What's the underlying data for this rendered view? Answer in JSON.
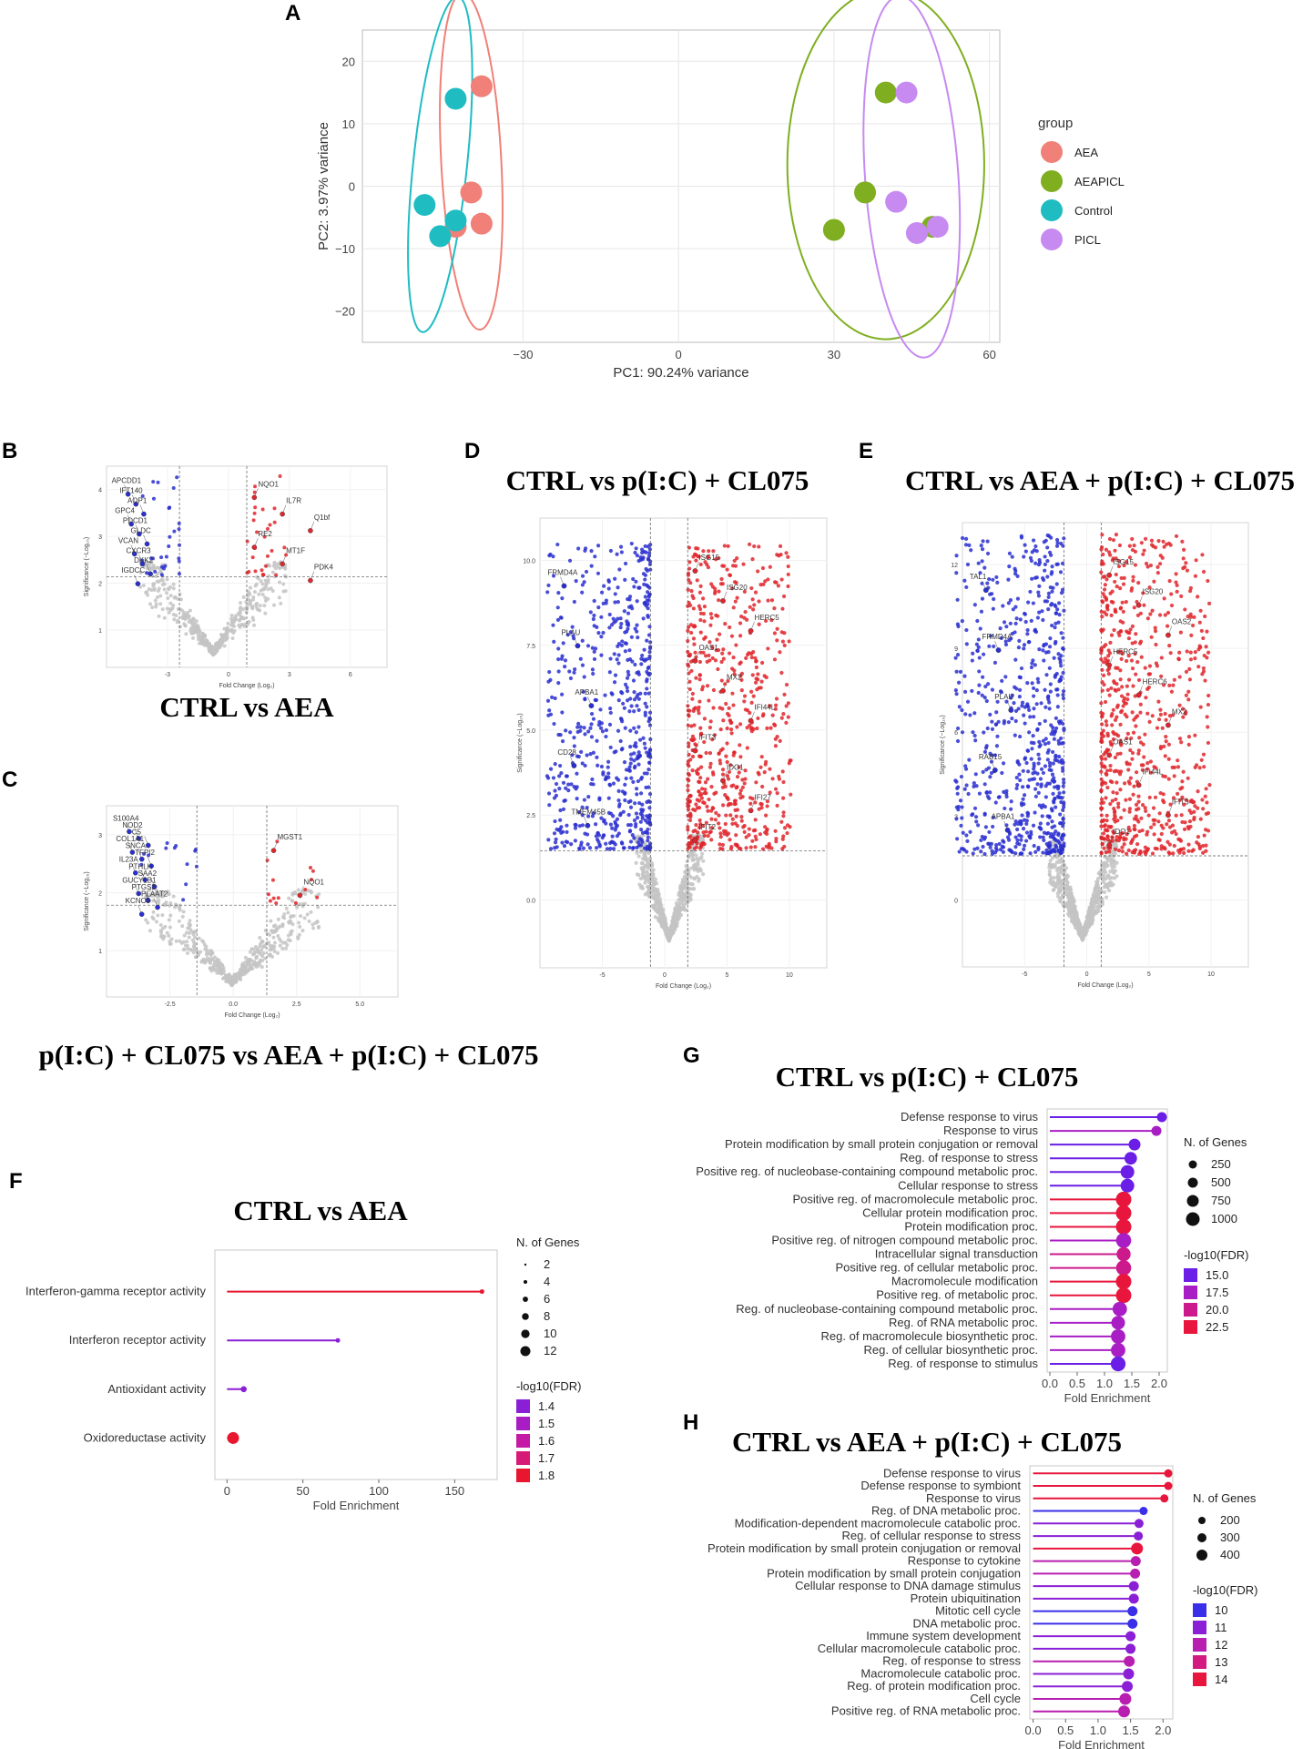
{
  "panel_letters": {
    "a": "A",
    "b": "B",
    "c": "C",
    "d": "D",
    "e": "E",
    "f": "F",
    "g": "G",
    "h": "H"
  },
  "colors": {
    "AEA": "#f08078",
    "AEAPICL": "#7fae20",
    "Control": "#1fbcc2",
    "PICL": "#c68af0",
    "down": "#2a2fd0",
    "up": "#e0262c",
    "ns": "#c4c4c4"
  },
  "chart_data": [
    {
      "id": "A",
      "type": "scatter",
      "xlabel": "PC1: 90.24% variance",
      "ylabel": "PC2: 3.97% variance",
      "xlim": [
        -61,
        62
      ],
      "ylim": [
        -25,
        25
      ],
      "xticks": [
        -30,
        0,
        30,
        60
      ],
      "yticks": [
        20,
        10,
        0,
        -10,
        -20
      ],
      "legend_title": "group",
      "series": [
        {
          "name": "AEA",
          "points": [
            [
              -38,
              16
            ],
            [
              -40,
              -1
            ],
            [
              -43,
              -6.5
            ],
            [
              -38,
              -6
            ]
          ]
        },
        {
          "name": "AEAPICL",
          "points": [
            [
              40,
              15
            ],
            [
              36,
              -1
            ],
            [
              30,
              -7
            ],
            [
              49,
              -6.5
            ]
          ]
        },
        {
          "name": "Control",
          "points": [
            [
              -43,
              14
            ],
            [
              -49,
              -3
            ],
            [
              -43,
              -5.5
            ],
            [
              -46,
              -8
            ]
          ]
        },
        {
          "name": "PICL",
          "points": [
            [
              44,
              15
            ],
            [
              42,
              -2.5
            ],
            [
              50,
              -6.5
            ],
            [
              46,
              -7.5
            ]
          ]
        }
      ]
    },
    {
      "id": "B",
      "type": "scatter",
      "title": "CTRL vs AEA",
      "xlabel": "Fold Change (Log₂)",
      "ylabel": "Significance (−Log₁₀)",
      "xticks": [
        "-3",
        "0",
        "3",
        "6"
      ],
      "yticks": [
        "4",
        "3",
        "2",
        "1"
      ],
      "labels_down": [
        "APCDD1",
        "IFT140",
        "AQP1",
        "GPC4",
        "PDCD1",
        "GLDC",
        "VCAN",
        "CXCR3",
        "DKK2",
        "IGDCC"
      ],
      "labels_up": [
        "NQO1",
        "IL7R",
        "Q1bf",
        "RE2",
        "MT1F",
        "PDK4"
      ]
    },
    {
      "id": "C",
      "type": "scatter",
      "title": "p(I:C) + CL075 vs AEA + p(I:C) + CL075",
      "xlabel": "Fold Change (Log₂)",
      "ylabel": "Significance (−Log₁₀)",
      "xticks": [
        "-2.5",
        "0.0",
        "2.5",
        "5.0"
      ],
      "yticks": [
        "3",
        "2",
        "1"
      ],
      "labels_down": [
        "S100A4",
        "NOD2",
        "C5",
        "COL1A1",
        "SNCA",
        "TFPI2",
        "IL23A",
        "PTHLH",
        "SAA2",
        "GUCY1B1",
        "PTGS2",
        "PLAAT2",
        "KCNC5"
      ],
      "labels_up": [
        "MGST1",
        "NQO1"
      ]
    },
    {
      "id": "D",
      "type": "scatter",
      "title": "CTRL vs p(I:C) + CL075",
      "xlabel": "Fold Change (Log₂)",
      "ylabel": "Significance (−Log₁₀)",
      "xticks": [
        "-5",
        "0",
        "5",
        "10"
      ],
      "yticks": [
        "10.0",
        "7.5",
        "5.0",
        "2.5",
        "0.0"
      ],
      "labels_down": [
        "FRMD4A",
        "PLAU",
        "APBA1",
        "CD28",
        "TMEM45B"
      ],
      "labels_up": [
        "ISG15",
        "ISG20",
        "HERC5",
        "OAS1",
        "MX2",
        "IFI44L",
        "IFIT3",
        "IDO1",
        "IFI27",
        "IFIT2"
      ]
    },
    {
      "id": "E",
      "type": "scatter",
      "title": "CTRL vs AEA + p(I:C) + CL075",
      "xlabel": "Fold Change (Log₂)",
      "ylabel": "Significance (−Log₁₀)",
      "xticks": [
        "-5",
        "0",
        "5",
        "10"
      ],
      "yticks": [
        "12",
        "9",
        "6",
        "3",
        "0"
      ],
      "labels_down": [
        "TAL1",
        "FRMD4A",
        "PLAU",
        "RAB15",
        "APBA1"
      ],
      "labels_up": [
        "ISG15",
        "ISG20",
        "OAS2",
        "HERC5",
        "HERC6",
        "MX2",
        "OAS1",
        "IFI44L",
        "IFIT3",
        "IDO1"
      ]
    },
    {
      "id": "F",
      "type": "lollipop",
      "title": "CTRL vs AEA",
      "xlabel": "Fold Enrichment",
      "xlim": [
        -8,
        178
      ],
      "xticks": [
        0,
        50,
        100,
        150
      ],
      "categories": [
        "Interferon-gamma receptor activity",
        "Interferon receptor activity",
        "Antioxidant activity",
        "Oxidoreductase activity"
      ],
      "values": [
        168,
        73,
        11,
        4
      ],
      "fdr": [
        1.8,
        1.4,
        1.4,
        1.8
      ],
      "genes": [
        2,
        2,
        4,
        12
      ],
      "size_legend_title": "N. of Genes",
      "size_legend": [
        "2",
        "4",
        "6",
        "8",
        "10",
        "12"
      ],
      "color_legend_title": "-log10(FDR)",
      "color_legend": [
        "1.4",
        "1.5",
        "1.6",
        "1.7",
        "1.8"
      ],
      "color_legend_colors": [
        "#8a1fd6",
        "#a81ec4",
        "#c41aa5",
        "#d81a77",
        "#e8162e"
      ]
    },
    {
      "id": "G",
      "type": "lollipop",
      "title": "CTRL vs p(I:C) + CL075",
      "xlabel": "Fold Enrichment",
      "xlim": [
        -0.05,
        2.15
      ],
      "xticks": [
        "0.0",
        "0.5",
        "1.0",
        "1.5",
        "2.0"
      ],
      "categories": [
        "Defense response to virus",
        "Response to virus",
        "Protein modification by small protein conjugation or removal",
        "Reg. of response to stress",
        "Positive reg. of nucleobase-containing compound metabolic proc.",
        "Cellular response to stress",
        "Positive reg. of macromolecule metabolic proc.",
        "Cellular protein modification proc.",
        "Protein modification proc.",
        "Positive reg. of nitrogen compound metabolic proc.",
        "Intracellular signal transduction",
        "Positive reg. of cellular metabolic proc.",
        "Macromolecule modification",
        "Positive reg. of metabolic proc.",
        "Reg. of nucleobase-containing compound metabolic proc.",
        "Reg. of RNA metabolic proc.",
        "Reg. of macromolecule biosynthetic proc.",
        "Reg. of cellular biosynthetic proc.",
        "Reg. of response to stimulus"
      ],
      "values": [
        2.05,
        1.95,
        1.55,
        1.48,
        1.42,
        1.42,
        1.35,
        1.35,
        1.35,
        1.35,
        1.35,
        1.35,
        1.35,
        1.35,
        1.28,
        1.25,
        1.25,
        1.25,
        1.25
      ],
      "fdr": [
        14.5,
        16.5,
        14.5,
        14.5,
        14.5,
        14.5,
        22.5,
        22.5,
        22.5,
        18.0,
        18.5,
        18.5,
        22.5,
        22.5,
        17.5,
        16.5,
        17.0,
        17.0,
        14.5
      ],
      "genes": [
        250,
        250,
        500,
        600,
        750,
        750,
        1000,
        1000,
        1000,
        950,
        800,
        950,
        1000,
        1000,
        850,
        750,
        850,
        850,
        900
      ],
      "size_legend_title": "N. of Genes",
      "size_legend": [
        "250",
        "500",
        "750",
        "1000"
      ],
      "color_legend_title": "-log10(FDR)",
      "color_legend": [
        "15.0",
        "17.5",
        "20.0",
        "22.5"
      ],
      "color_legend_colors": [
        "#6a1ee6",
        "#a81ec4",
        "#cc1a8c",
        "#e8163c"
      ]
    },
    {
      "id": "H",
      "type": "lollipop",
      "title": "CTRL vs AEA + p(I:C) + CL075",
      "xlabel": "Fold Enrichment",
      "xlim": [
        -0.05,
        2.15
      ],
      "xticks": [
        "0.0",
        "0.5",
        "1.0",
        "1.5",
        "2.0"
      ],
      "categories": [
        "Defense response to virus",
        "Defense response to symbiont",
        "Response to virus",
        "Reg. of DNA metabolic proc.",
        "Modification-dependent macromolecule catabolic proc.",
        "Reg. of cellular response to stress",
        "Protein modification by small protein conjugation or removal",
        "Response to cytokine",
        "Protein modification by small protein conjugation",
        "Cellular response to DNA damage stimulus",
        "Protein ubiquitination",
        "Mitotic cell cycle",
        "DNA metabolic proc.",
        "Immune system development",
        "Cellular macromolecule catabolic proc.",
        "Reg. of response to stress",
        "Macromolecule catabolic proc.",
        "Reg. of protein modification proc.",
        "Cell cycle",
        "Positive reg. of RNA metabolic proc."
      ],
      "values": [
        2.08,
        2.08,
        2.02,
        1.7,
        1.63,
        1.62,
        1.6,
        1.58,
        1.57,
        1.55,
        1.55,
        1.53,
        1.53,
        1.5,
        1.5,
        1.48,
        1.47,
        1.45,
        1.42,
        1.4
      ],
      "fdr": [
        14,
        13.5,
        14,
        10,
        10.5,
        10.5,
        14,
        12,
        11.5,
        10.5,
        10.5,
        10,
        10,
        10.5,
        10.5,
        11.5,
        11,
        11,
        11.5,
        11.5
      ],
      "genes": [
        200,
        200,
        200,
        200,
        250,
        250,
        400,
        300,
        300,
        300,
        300,
        300,
        300,
        300,
        300,
        350,
        350,
        350,
        400,
        400
      ],
      "size_legend_title": "N. of Genes",
      "size_legend": [
        "200",
        "300",
        "400"
      ],
      "color_legend_title": "-log10(FDR)",
      "color_legend": [
        "10",
        "11",
        "12",
        "13",
        "14"
      ],
      "color_legend_colors": [
        "#3a2fe8",
        "#8a1fd6",
        "#b81eb0",
        "#d21a80",
        "#e8163c"
      ]
    }
  ]
}
